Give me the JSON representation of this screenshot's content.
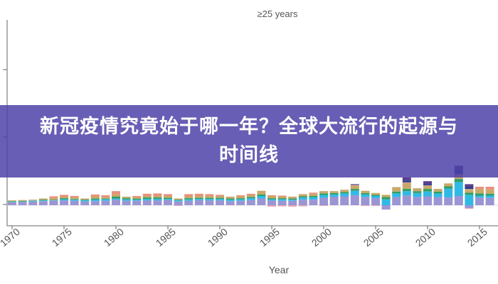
{
  "banner": {
    "headline": "新冠疫情究竟始于哪一年？全球大流行的起源与时间线"
  },
  "chart_data": {
    "type": "bar",
    "title": "≥25 years",
    "xlabel": "Year",
    "ylabel": "",
    "x_ticks": [
      "1970",
      "1975",
      "1980",
      "1985",
      "1990",
      "1995",
      "2000",
      "2005",
      "2010",
      "2015"
    ],
    "years": [
      1970,
      1971,
      1972,
      1973,
      1974,
      1975,
      1976,
      1977,
      1978,
      1979,
      1980,
      1981,
      1982,
      1983,
      1984,
      1985,
      1986,
      1987,
      1988,
      1989,
      1990,
      1991,
      1992,
      1993,
      1994,
      1995,
      1996,
      1997,
      1998,
      1999,
      2000,
      2001,
      2002,
      2003,
      2004,
      2005,
      2006,
      2007,
      2008,
      2009,
      2010,
      2011,
      2012,
      2013,
      2014,
      2015,
      2016
    ],
    "colors": {
      "lavender": "#9b95d4",
      "cyan": "#31b9e6",
      "green": "#2f9e60",
      "tan": "#c9a86a",
      "salmon": "#e8917d",
      "navy": "#1f3f8e",
      "purple": "#5a3e8c",
      "pink": "#e4a6b6"
    },
    "series": [
      {
        "color_key": "lavender",
        "values": [
          0.8,
          0.9,
          1.0,
          1.1,
          1.2,
          1.3,
          1.2,
          1.0,
          1.1,
          1.2,
          1.5,
          1.2,
          1.2,
          1.3,
          1.3,
          1.4,
          1.0,
          1.2,
          1.4,
          1.3,
          1.3,
          1.1,
          1.2,
          1.4,
          1.8,
          1.3,
          1.2,
          1.2,
          1.5,
          1.5,
          2.0,
          2.3,
          2.4,
          2.7,
          2.2,
          1.9,
          -1.2,
          2.2,
          2.6,
          2.2,
          2.4,
          2.2,
          2.1,
          2.5,
          -0.8,
          2.1,
          2.0
        ]
      },
      {
        "color_key": "cyan",
        "values": [
          0.1,
          0.1,
          0.2,
          0.2,
          0.1,
          0.3,
          0.3,
          0.3,
          0.4,
          0.4,
          0.3,
          0.4,
          0.3,
          0.4,
          0.4,
          0.3,
          0.3,
          0.4,
          0.3,
          0.4,
          0.4,
          0.4,
          0.4,
          0.5,
          0.7,
          0.3,
          0.4,
          0.3,
          0.6,
          0.7,
          0.8,
          0.6,
          0.8,
          1.2,
          0.7,
          0.6,
          1.6,
          1.0,
          1.2,
          1.1,
          1.3,
          1.0,
          2.4,
          3.8,
          2.8,
          0.5,
          0.6
        ]
      },
      {
        "color_key": "green",
        "values": [
          0.2,
          0.2,
          0.1,
          0.2,
          0.2,
          0.3,
          0.2,
          0.2,
          0.3,
          0.2,
          0.5,
          0.3,
          0.3,
          0.4,
          0.4,
          0.3,
          0.2,
          0.3,
          0.3,
          0.3,
          0.3,
          0.3,
          0.3,
          0.3,
          0.4,
          0.3,
          0.3,
          0.3,
          0.3,
          0.3,
          0.4,
          0.4,
          0.4,
          0.5,
          0.4,
          0.3,
          0.6,
          0.5,
          0.6,
          0.5,
          0.7,
          0.5,
          0.6,
          0.8,
          0.6,
          0.6,
          0.5
        ]
      },
      {
        "color_key": "tan",
        "values": [
          0.2,
          0.2,
          0.2,
          0.3,
          0.4,
          0.4,
          0.4,
          0.3,
          0.6,
          0.4,
          0.6,
          0.4,
          0.4,
          0.4,
          0.5,
          0.5,
          0.3,
          0.5,
          0.5,
          0.5,
          0.5,
          0.5,
          0.5,
          0.6,
          1.0,
          0.6,
          0.5,
          0.5,
          0.6,
          0.6,
          0.6,
          0.5,
          0.6,
          0.9,
          0.6,
          0.5,
          0.6,
          1.2,
          1.6,
          0.8,
          0.8,
          0.7,
          0.8,
          1.0,
          0.8,
          1.2,
          1.1
        ]
      },
      {
        "color_key": "salmon",
        "values": [
          0.0,
          0.0,
          0.0,
          0.0,
          0.5,
          0.5,
          0.4,
          0.0,
          0.5,
          0.5,
          0.9,
          0.0,
          0.3,
          0.6,
          0.6,
          0.5,
          0.0,
          0.6,
          0.6,
          0.5,
          0.3,
          0.0,
          0.3,
          0.3,
          0.0,
          0.2,
          0.2,
          0.0,
          0.0,
          0.3,
          0.0,
          0.0,
          0.0,
          0.2,
          0.0,
          0.0,
          0.0,
          0.0,
          0.2,
          0.0,
          0.2,
          0.0,
          0.0,
          0.3,
          0.2,
          0.6,
          0.8
        ]
      },
      {
        "color_key": "navy",
        "values": [
          0.0,
          0.0,
          0.0,
          0.0,
          0.0,
          0.0,
          0.0,
          0.0,
          0.0,
          0.0,
          0.0,
          0.0,
          0.0,
          0.0,
          0.0,
          0.0,
          0.0,
          0.0,
          0.0,
          0.0,
          0.0,
          0.0,
          0.0,
          0.0,
          0.0,
          0.0,
          0.0,
          0.0,
          0.0,
          0.0,
          0.0,
          0.0,
          0.0,
          0.2,
          0.0,
          0.0,
          0.0,
          0.0,
          0.5,
          0.0,
          0.3,
          0.0,
          0.0,
          1.3,
          0.5,
          0.0,
          0.0
        ]
      },
      {
        "color_key": "purple",
        "values": [
          0.0,
          0.0,
          0.0,
          0.0,
          0.0,
          0.0,
          0.0,
          0.0,
          0.0,
          0.0,
          0.0,
          0.0,
          0.0,
          0.0,
          0.0,
          0.0,
          0.0,
          0.0,
          0.0,
          0.0,
          0.0,
          0.0,
          0.0,
          0.0,
          0.0,
          0.0,
          0.0,
          0.0,
          0.0,
          0.0,
          0.0,
          0.0,
          0.0,
          0.0,
          0.0,
          0.0,
          0.0,
          0.0,
          0.8,
          0.0,
          0.8,
          0.0,
          0.0,
          1.0,
          0.8,
          0.0,
          0.0
        ]
      },
      {
        "color_key": "pink",
        "values": [
          0.0,
          0.0,
          0.0,
          0.0,
          0.0,
          0.0,
          0.0,
          0.0,
          0.0,
          0.0,
          0.0,
          0.0,
          0.0,
          0.0,
          0.0,
          0.0,
          -0.2,
          0.0,
          0.0,
          0.0,
          0.0,
          0.0,
          0.0,
          0.0,
          0.0,
          -0.4,
          -0.3,
          -0.4,
          -0.3,
          0.0,
          -0.2,
          0.0,
          0.0,
          0.0,
          -0.2,
          -0.2,
          0.0,
          0.0,
          0.0,
          0.0,
          0.0,
          0.0,
          0.0,
          0.0,
          -0.2,
          0.0,
          0.0
        ]
      }
    ]
  }
}
